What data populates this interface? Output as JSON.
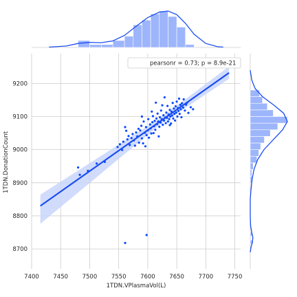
{
  "chart_data": {
    "type": "scatter",
    "variant": "jointplot-regression",
    "xlabel": "1TDN.VPlasmaVol(L)",
    "ylabel": "1TDN.DonationCount",
    "xlim": [
      7400,
      7760
    ],
    "ylim": [
      8640,
      9290
    ],
    "x_ticks": [
      "7400",
      "7450",
      "7500",
      "7550",
      "7600",
      "7650",
      "7700",
      "7750"
    ],
    "y_ticks": [
      "8700",
      "8800",
      "8900",
      "9000",
      "9100",
      "9200"
    ],
    "grid": true,
    "annotation": "pearsonr = 0.73; p = 8.9e-21",
    "annotation_placement": "top-right",
    "colors": {
      "point": "#0b49ff",
      "line": "#1a4df0",
      "band": "#c9d6fb",
      "hist_fill": "#9db5fb",
      "hist_edge": "#ffffff",
      "grid": "#cccccc"
    },
    "regression": {
      "x": [
        7415,
        7740
      ],
      "y": [
        8830,
        9232
      ]
    },
    "ci_band": {
      "upper_start": 8864,
      "lower_start": 8776,
      "upper_end": 9251,
      "lower_end": 9214,
      "narrow_x": 7620,
      "narrow_half_width": 10
    },
    "points": [
      {
        "x": 7480,
        "y": 8946
      },
      {
        "x": 7483,
        "y": 8924
      },
      {
        "x": 7497,
        "y": 8936
      },
      {
        "x": 7512,
        "y": 8958
      },
      {
        "x": 7526,
        "y": 8963
      },
      {
        "x": 7548,
        "y": 9008
      },
      {
        "x": 7552,
        "y": 9016
      },
      {
        "x": 7556,
        "y": 8999
      },
      {
        "x": 7558,
        "y": 9024
      },
      {
        "x": 7561,
        "y": 9068
      },
      {
        "x": 7563,
        "y": 9057
      },
      {
        "x": 7565,
        "y": 9031
      },
      {
        "x": 7567,
        "y": 9041
      },
      {
        "x": 7569,
        "y": 9014
      },
      {
        "x": 7572,
        "y": 9035
      },
      {
        "x": 7574,
        "y": 9047
      },
      {
        "x": 7576,
        "y": 9028
      },
      {
        "x": 7578,
        "y": 9012
      },
      {
        "x": 7580,
        "y": 9052
      },
      {
        "x": 7582,
        "y": 9040
      },
      {
        "x": 7584,
        "y": 9063
      },
      {
        "x": 7585,
        "y": 9021
      },
      {
        "x": 7587,
        "y": 9058
      },
      {
        "x": 7589,
        "y": 9072
      },
      {
        "x": 7590,
        "y": 9034
      },
      {
        "x": 7592,
        "y": 9019
      },
      {
        "x": 7593,
        "y": 9085
      },
      {
        "x": 7595,
        "y": 9051
      },
      {
        "x": 7597,
        "y": 9068
      },
      {
        "x": 7598,
        "y": 9044
      },
      {
        "x": 7600,
        "y": 9058
      },
      {
        "x": 7601,
        "y": 9092
      },
      {
        "x": 7602,
        "y": 9036
      },
      {
        "x": 7604,
        "y": 9076
      },
      {
        "x": 7605,
        "y": 9064
      },
      {
        "x": 7606,
        "y": 9049
      },
      {
        "x": 7608,
        "y": 9083
      },
      {
        "x": 7609,
        "y": 9101
      },
      {
        "x": 7611,
        "y": 9071
      },
      {
        "x": 7612,
        "y": 9087
      },
      {
        "x": 7613,
        "y": 9060
      },
      {
        "x": 7615,
        "y": 9094
      },
      {
        "x": 7616,
        "y": 9077
      },
      {
        "x": 7617,
        "y": 9109
      },
      {
        "x": 7618,
        "y": 9085
      },
      {
        "x": 7620,
        "y": 9069
      },
      {
        "x": 7621,
        "y": 9098
      },
      {
        "x": 7622,
        "y": 9082
      },
      {
        "x": 7623,
        "y": 9118
      },
      {
        "x": 7624,
        "y": 9092
      },
      {
        "x": 7626,
        "y": 9075
      },
      {
        "x": 7627,
        "y": 9104
      },
      {
        "x": 7628,
        "y": 9088
      },
      {
        "x": 7629,
        "y": 9158
      },
      {
        "x": 7630,
        "y": 9097
      },
      {
        "x": 7631,
        "y": 9080
      },
      {
        "x": 7632,
        "y": 9112
      },
      {
        "x": 7633,
        "y": 9096
      },
      {
        "x": 7634,
        "y": 9132
      },
      {
        "x": 7635,
        "y": 9085
      },
      {
        "x": 7636,
        "y": 9106
      },
      {
        "x": 7637,
        "y": 9092
      },
      {
        "x": 7638,
        "y": 9120
      },
      {
        "x": 7639,
        "y": 9100
      },
      {
        "x": 7640,
        "y": 9079
      },
      {
        "x": 7641,
        "y": 9115
      },
      {
        "x": 7642,
        "y": 9103
      },
      {
        "x": 7643,
        "y": 9141
      },
      {
        "x": 7644,
        "y": 9094
      },
      {
        "x": 7645,
        "y": 9124
      },
      {
        "x": 7646,
        "y": 9108
      },
      {
        "x": 7647,
        "y": 9088
      },
      {
        "x": 7648,
        "y": 9131
      },
      {
        "x": 7649,
        "y": 9112
      },
      {
        "x": 7650,
        "y": 9145
      },
      {
        "x": 7651,
        "y": 9100
      },
      {
        "x": 7652,
        "y": 9126
      },
      {
        "x": 7653,
        "y": 9117
      },
      {
        "x": 7654,
        "y": 9154
      },
      {
        "x": 7655,
        "y": 9108
      },
      {
        "x": 7656,
        "y": 9135
      },
      {
        "x": 7657,
        "y": 9122
      },
      {
        "x": 7658,
        "y": 9098
      },
      {
        "x": 7659,
        "y": 9140
      },
      {
        "x": 7661,
        "y": 9127
      },
      {
        "x": 7662,
        "y": 9152
      },
      {
        "x": 7664,
        "y": 9118
      },
      {
        "x": 7666,
        "y": 9136
      },
      {
        "x": 7668,
        "y": 9142
      },
      {
        "x": 7670,
        "y": 9111
      },
      {
        "x": 7674,
        "y": 9128
      },
      {
        "x": 7678,
        "y": 9122
      },
      {
        "x": 7590,
        "y": 9100
      },
      {
        "x": 7596,
        "y": 9010
      },
      {
        "x": 7610,
        "y": 9050
      },
      {
        "x": 7619,
        "y": 9040
      },
      {
        "x": 7625,
        "y": 9134
      },
      {
        "x": 7607,
        "y": 9115
      },
      {
        "x": 7638,
        "y": 9074
      },
      {
        "x": 7614,
        "y": 9142
      },
      {
        "x": 7561,
        "y": 8718
      },
      {
        "x": 7598,
        "y": 8742
      }
    ],
    "x_hist": {
      "bin_edges": [
        7480,
        7500,
        7520,
        7540,
        7560,
        7575,
        7590,
        7605,
        7620,
        7635,
        7650,
        7665,
        7680
      ],
      "heights": [
        0.19,
        0.08,
        0.08,
        0.19,
        0.31,
        0.62,
        0.75,
        0.92,
        1.0,
        0.85,
        0.56,
        0.08
      ],
      "kde": [
        [
          7430,
          0.01
        ],
        [
          7460,
          0.04
        ],
        [
          7480,
          0.11
        ],
        [
          7500,
          0.14
        ],
        [
          7520,
          0.13
        ],
        [
          7540,
          0.18
        ],
        [
          7560,
          0.33
        ],
        [
          7580,
          0.58
        ],
        [
          7600,
          0.82
        ],
        [
          7620,
          0.97
        ],
        [
          7635,
          1.0
        ],
        [
          7650,
          0.9
        ],
        [
          7665,
          0.66
        ],
        [
          7680,
          0.36
        ],
        [
          7700,
          0.11
        ],
        [
          7720,
          0.02
        ],
        [
          7730,
          0.01
        ]
      ]
    },
    "y_hist": {
      "bin_edges": [
        8715,
        8727,
        8739,
        8751,
        8900,
        8920,
        8940,
        8960,
        8980,
        9000,
        9020,
        9040,
        9060,
        9080,
        9100,
        9120,
        9140,
        9160,
        9180
      ],
      "heights": [
        0.05,
        0.0,
        0.05,
        0.0,
        0.05,
        0.04,
        0.08,
        0.18,
        0.23,
        0.28,
        0.38,
        0.54,
        0.74,
        1.0,
        0.62,
        0.46,
        0.33,
        0.25
      ],
      "kde": [
        [
          8690,
          0.0
        ],
        [
          8705,
          0.02
        ],
        [
          8720,
          0.06
        ],
        [
          8735,
          0.07
        ],
        [
          8750,
          0.04
        ],
        [
          8770,
          0.01
        ],
        [
          8800,
          0.0
        ],
        [
          8850,
          0.0
        ],
        [
          8880,
          0.02
        ],
        [
          8910,
          0.05
        ],
        [
          8940,
          0.1
        ],
        [
          8970,
          0.2
        ],
        [
          9000,
          0.37
        ],
        [
          9030,
          0.62
        ],
        [
          9060,
          0.87
        ],
        [
          9085,
          1.0
        ],
        [
          9110,
          0.9
        ],
        [
          9135,
          0.63
        ],
        [
          9160,
          0.33
        ],
        [
          9185,
          0.13
        ],
        [
          9210,
          0.04
        ],
        [
          9240,
          0.0
        ]
      ]
    }
  }
}
